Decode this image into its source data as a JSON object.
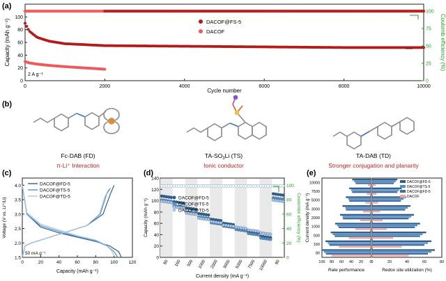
{
  "panel_labels": {
    "a": "(a)",
    "b": "(b)",
    "c": "(c)",
    "d": "(d)",
    "e": "(e)"
  },
  "colors": {
    "dark_red": "#b31b1b",
    "light_red": "#ee5a5a",
    "green": "#22a122",
    "blue_dark": "#2f5f8f",
    "blue_mid": "#5b8fc2",
    "blue_light": "#a8c6e6",
    "pink": "#f2a7a7"
  },
  "molecules": [
    {
      "name": "Fc-DAB (FD)",
      "desc": "π-Li⁺ Interaction"
    },
    {
      "name": "TA-SO",
      "name_sub": "3",
      "name_tail": "Li (TS)",
      "desc": "Ionic conductor"
    },
    {
      "name": "TA-DAB (TD)",
      "desc": "Stronger conjugation and planarity"
    }
  ],
  "chart_data": [
    {
      "type": "scatter",
      "panel": "a",
      "xlabel": "Cycle number",
      "ylabel": "Capacity (mAh g⁻¹)",
      "y2label": "Coulomb efficiency (%)",
      "xlim": [
        0,
        10000
      ],
      "ylim": [
        0,
        120
      ],
      "y2lim": [
        0,
        110
      ],
      "xticks": [
        "0",
        "2000",
        "4000",
        "6000",
        "8000",
        "10000"
      ],
      "yticks": [
        "0",
        "20",
        "40",
        "60",
        "80",
        "100"
      ],
      "y2ticks": [
        "0",
        "25",
        "50",
        "75",
        "100"
      ],
      "annotation": "2 A g⁻¹",
      "legend": "top-center",
      "series": [
        {
          "name": "DACOF@FS-5",
          "axis": "capacity",
          "x": [
            0,
            100,
            300,
            600,
            1000,
            2000,
            4000,
            6000,
            8000,
            10000
          ],
          "values": [
            90,
            78,
            68,
            62,
            58,
            55,
            54,
            53,
            52,
            52
          ]
        },
        {
          "name": "DACOF",
          "axis": "capacity",
          "x": [
            0,
            100,
            300,
            600,
            1000,
            1500,
            2000
          ],
          "values": [
            30,
            28,
            26,
            24,
            22,
            20,
            18
          ]
        },
        {
          "axis": "efficiency",
          "x": [
            0,
            10000
          ],
          "values": [
            100,
            100
          ]
        }
      ]
    },
    {
      "type": "line",
      "panel": "c",
      "xlabel": "Capacity (mAh g⁻¹)",
      "ylabel": "Voltage (V vs. Li⁺/Li)",
      "xlim": [
        0,
        120
      ],
      "ylim": [
        1.5,
        4.25
      ],
      "xticks": [
        "0",
        "20",
        "40",
        "60",
        "80",
        "100",
        "120"
      ],
      "yticks": [
        "1.5",
        "2.0",
        "2.5",
        "3.0",
        "3.5",
        "4.0"
      ],
      "annotation": "50 mA g⁻¹",
      "series": [
        {
          "name": "DACOF@FD-5",
          "discharge_cap": [
            0,
            5,
            20,
            40,
            60,
            80,
            95,
            105,
            108
          ],
          "discharge_v": [
            4.0,
            3.0,
            2.55,
            2.35,
            2.2,
            2.05,
            1.9,
            1.7,
            1.5
          ],
          "charge_cap": [
            0,
            3,
            10,
            40,
            70,
            88,
            96,
            100
          ],
          "charge_v": [
            1.5,
            1.9,
            2.0,
            2.3,
            2.6,
            3.0,
            3.7,
            4.0
          ]
        },
        {
          "name": "DACOF@TS-5",
          "discharge_cap": [
            0,
            5,
            20,
            40,
            60,
            80,
            92,
            100,
            104
          ],
          "discharge_v": [
            4.0,
            3.0,
            2.6,
            2.4,
            2.22,
            2.07,
            1.9,
            1.7,
            1.5
          ],
          "charge_cap": [
            0,
            3,
            10,
            40,
            70,
            85,
            92,
            96
          ],
          "charge_v": [
            1.5,
            1.9,
            2.0,
            2.3,
            2.6,
            3.0,
            3.7,
            3.9
          ]
        },
        {
          "name": "DACOF@TD-5",
          "discharge_cap": [
            0,
            5,
            20,
            40,
            60,
            80,
            90,
            97,
            100
          ],
          "discharge_v": [
            4.0,
            3.05,
            2.65,
            2.45,
            2.25,
            2.1,
            1.95,
            1.75,
            1.55
          ],
          "charge_cap": [
            0,
            3,
            10,
            40,
            70,
            84,
            90,
            94
          ],
          "charge_v": [
            1.55,
            1.9,
            2.0,
            2.3,
            2.6,
            3.0,
            3.6,
            3.85
          ]
        }
      ]
    },
    {
      "type": "scatter",
      "panel": "d",
      "xlabel": "Current density (mA g⁻¹)",
      "ylabel": "Capacity (mAh g⁻¹)",
      "y2label": "Coulombic efficiency (%)",
      "categories": [
        "80",
        "160",
        "500",
        "1000",
        "2000",
        "3000",
        "5000",
        "7500",
        "10000",
        "80"
      ],
      "ylim": [
        0,
        140
      ],
      "y2lim": [
        0,
        110
      ],
      "yticks": [
        "0",
        "20",
        "40",
        "60",
        "80",
        "100",
        "120",
        "140"
      ],
      "y2ticks": [
        "0",
        "20",
        "40",
        "60",
        "80",
        "100"
      ],
      "series": [
        {
          "name": "DACOF@FD-5",
          "values": [
            107,
            97,
            86,
            76,
            66,
            59,
            51,
            44,
            36,
            111
          ]
        },
        {
          "name": "DACOF@TS-5",
          "values": [
            100,
            90,
            79,
            70,
            60,
            54,
            48,
            41,
            33,
            104
          ]
        },
        {
          "name": "DACOF@TD-5",
          "values": [
            98,
            88,
            77,
            68,
            62,
            56,
            52,
            47,
            42,
            100
          ]
        }
      ],
      "efficiency": [
        99,
        99,
        99,
        99,
        99,
        99,
        99,
        99,
        99,
        99
      ]
    },
    {
      "type": "bar",
      "panel": "e",
      "orientation": "horizontal",
      "ylabel": "Current density (mA g⁻¹)",
      "categories": [
        "80",
        "160",
        "500",
        "1000",
        "2000",
        "3000",
        "5000",
        "7500",
        "10000"
      ],
      "legend": [
        "DACOF@FD-5",
        "DACOF@TS-5",
        "DACOF@FD-5",
        "DACOF"
      ],
      "left": {
        "xlabel": "Rate performance",
        "xlim": [
          100,
          0
        ],
        "xticks": [
          "100",
          "80",
          "60",
          "40",
          "20",
          "0"
        ],
        "series": [
          {
            "name": "DACOF@FD-5",
            "values": [
              100,
              93,
              82,
              73,
              63,
              58,
              51,
              44,
              38
            ]
          },
          {
            "name": "DACOF@TS-5",
            "values": [
              96,
              88,
              78,
              69,
              58,
              52,
              46,
              40,
              34
            ]
          },
          {
            "name": "DACOF@FD-5",
            "values": [
              92,
              85,
              74,
              66,
              57,
              51,
              44,
              38,
              31
            ]
          },
          {
            "name": "DACOF",
            "values": [
              80,
              65,
              45,
              32,
              22,
              16,
              11,
              8,
              6
            ]
          }
        ]
      },
      "right": {
        "xlabel": "Redox site utilization (%)",
        "xlim": [
          0,
          80
        ],
        "xticks": [
          "0",
          "20",
          "40",
          "60",
          "80"
        ],
        "series": [
          {
            "name": "DACOF@FD-5",
            "values": [
              72,
              68,
              62,
              55,
              48,
              44,
              39,
              34,
              29
            ]
          },
          {
            "name": "DACOF@TS-5",
            "values": [
              68,
              64,
              58,
              52,
              45,
              41,
              36,
              31,
              27
            ]
          },
          {
            "name": "DACOF@FD-5",
            "values": [
              64,
              60,
              55,
              49,
              42,
              38,
              33,
              29,
              25
            ]
          },
          {
            "name": "DACOF",
            "values": [
              42,
              34,
              24,
              17,
              12,
              9,
              7,
              5,
              4
            ]
          }
        ]
      }
    }
  ]
}
